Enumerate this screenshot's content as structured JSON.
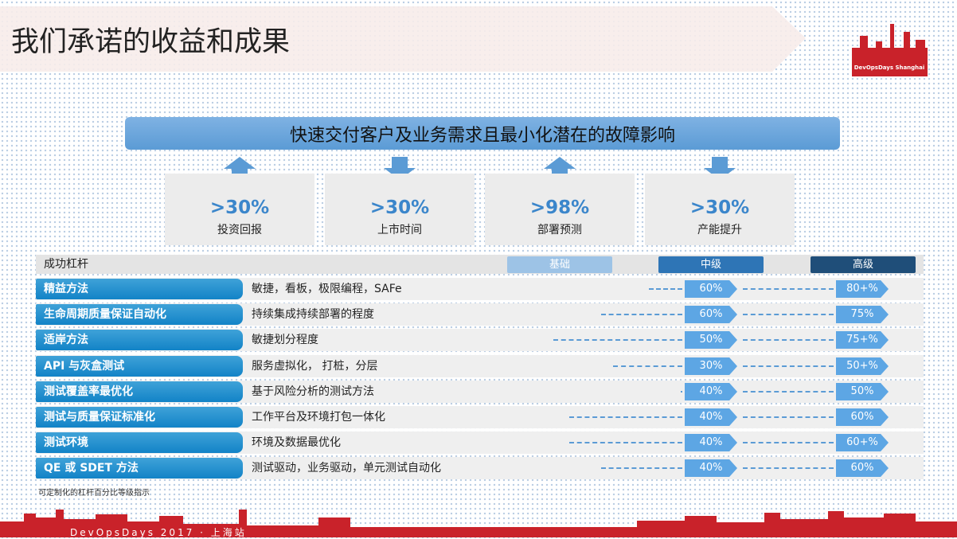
{
  "header": {
    "title": "我们承诺的收益和成果",
    "logo_text": "DevOpsDays Shanghai"
  },
  "goal": "快速交付客户及业务需求且最小化潜在的故障影响",
  "metrics": [
    {
      "value": ">30%",
      "label": "投资回报"
    },
    {
      "value": ">30%",
      "label": "上市时间"
    },
    {
      "value": ">98%",
      "label": "部署预测"
    },
    {
      "value": ">30%",
      "label": "产能提升"
    }
  ],
  "table": {
    "header": "成功杠杆",
    "levels": [
      "基础",
      "中级",
      "高级"
    ],
    "rows": [
      {
        "name": "精益方法",
        "description": "敏捷，看板，极限编程，SAFe",
        "mid": "60%",
        "high": "80+%"
      },
      {
        "name": "生命周期质量保证自动化",
        "description": "持续集成持续部署的程度",
        "mid": "60%",
        "high": "75%"
      },
      {
        "name": "适岸方法",
        "description": "敏捷划分程度",
        "mid": "50%",
        "high": "75+%"
      },
      {
        "name": "API 与灰盒测试",
        "description": "服务虚拟化， 打桩，分层",
        "mid": "30%",
        "high": "50+%"
      },
      {
        "name": "测试覆盖率最优化",
        "description": "基于风险分析的测试方法",
        "mid": "40%",
        "high": "50%"
      },
      {
        "name": "测试与质量保证标准化",
        "description": "工作平台及环境打包一体化",
        "mid": "40%",
        "high": "60%"
      },
      {
        "name": "测试环境",
        "description": "环境及数据最优化",
        "mid": "40%",
        "high": "60+%"
      },
      {
        "name": "QE 或 SDET 方法",
        "description": "测试驱动，业务驱动，单元测试自动化",
        "mid": "40%",
        "high": "60%"
      }
    ]
  },
  "footnote": "可定制化的杠杆百分比等级指示",
  "footer": "DevOpsDays 2017 · 上海站"
}
